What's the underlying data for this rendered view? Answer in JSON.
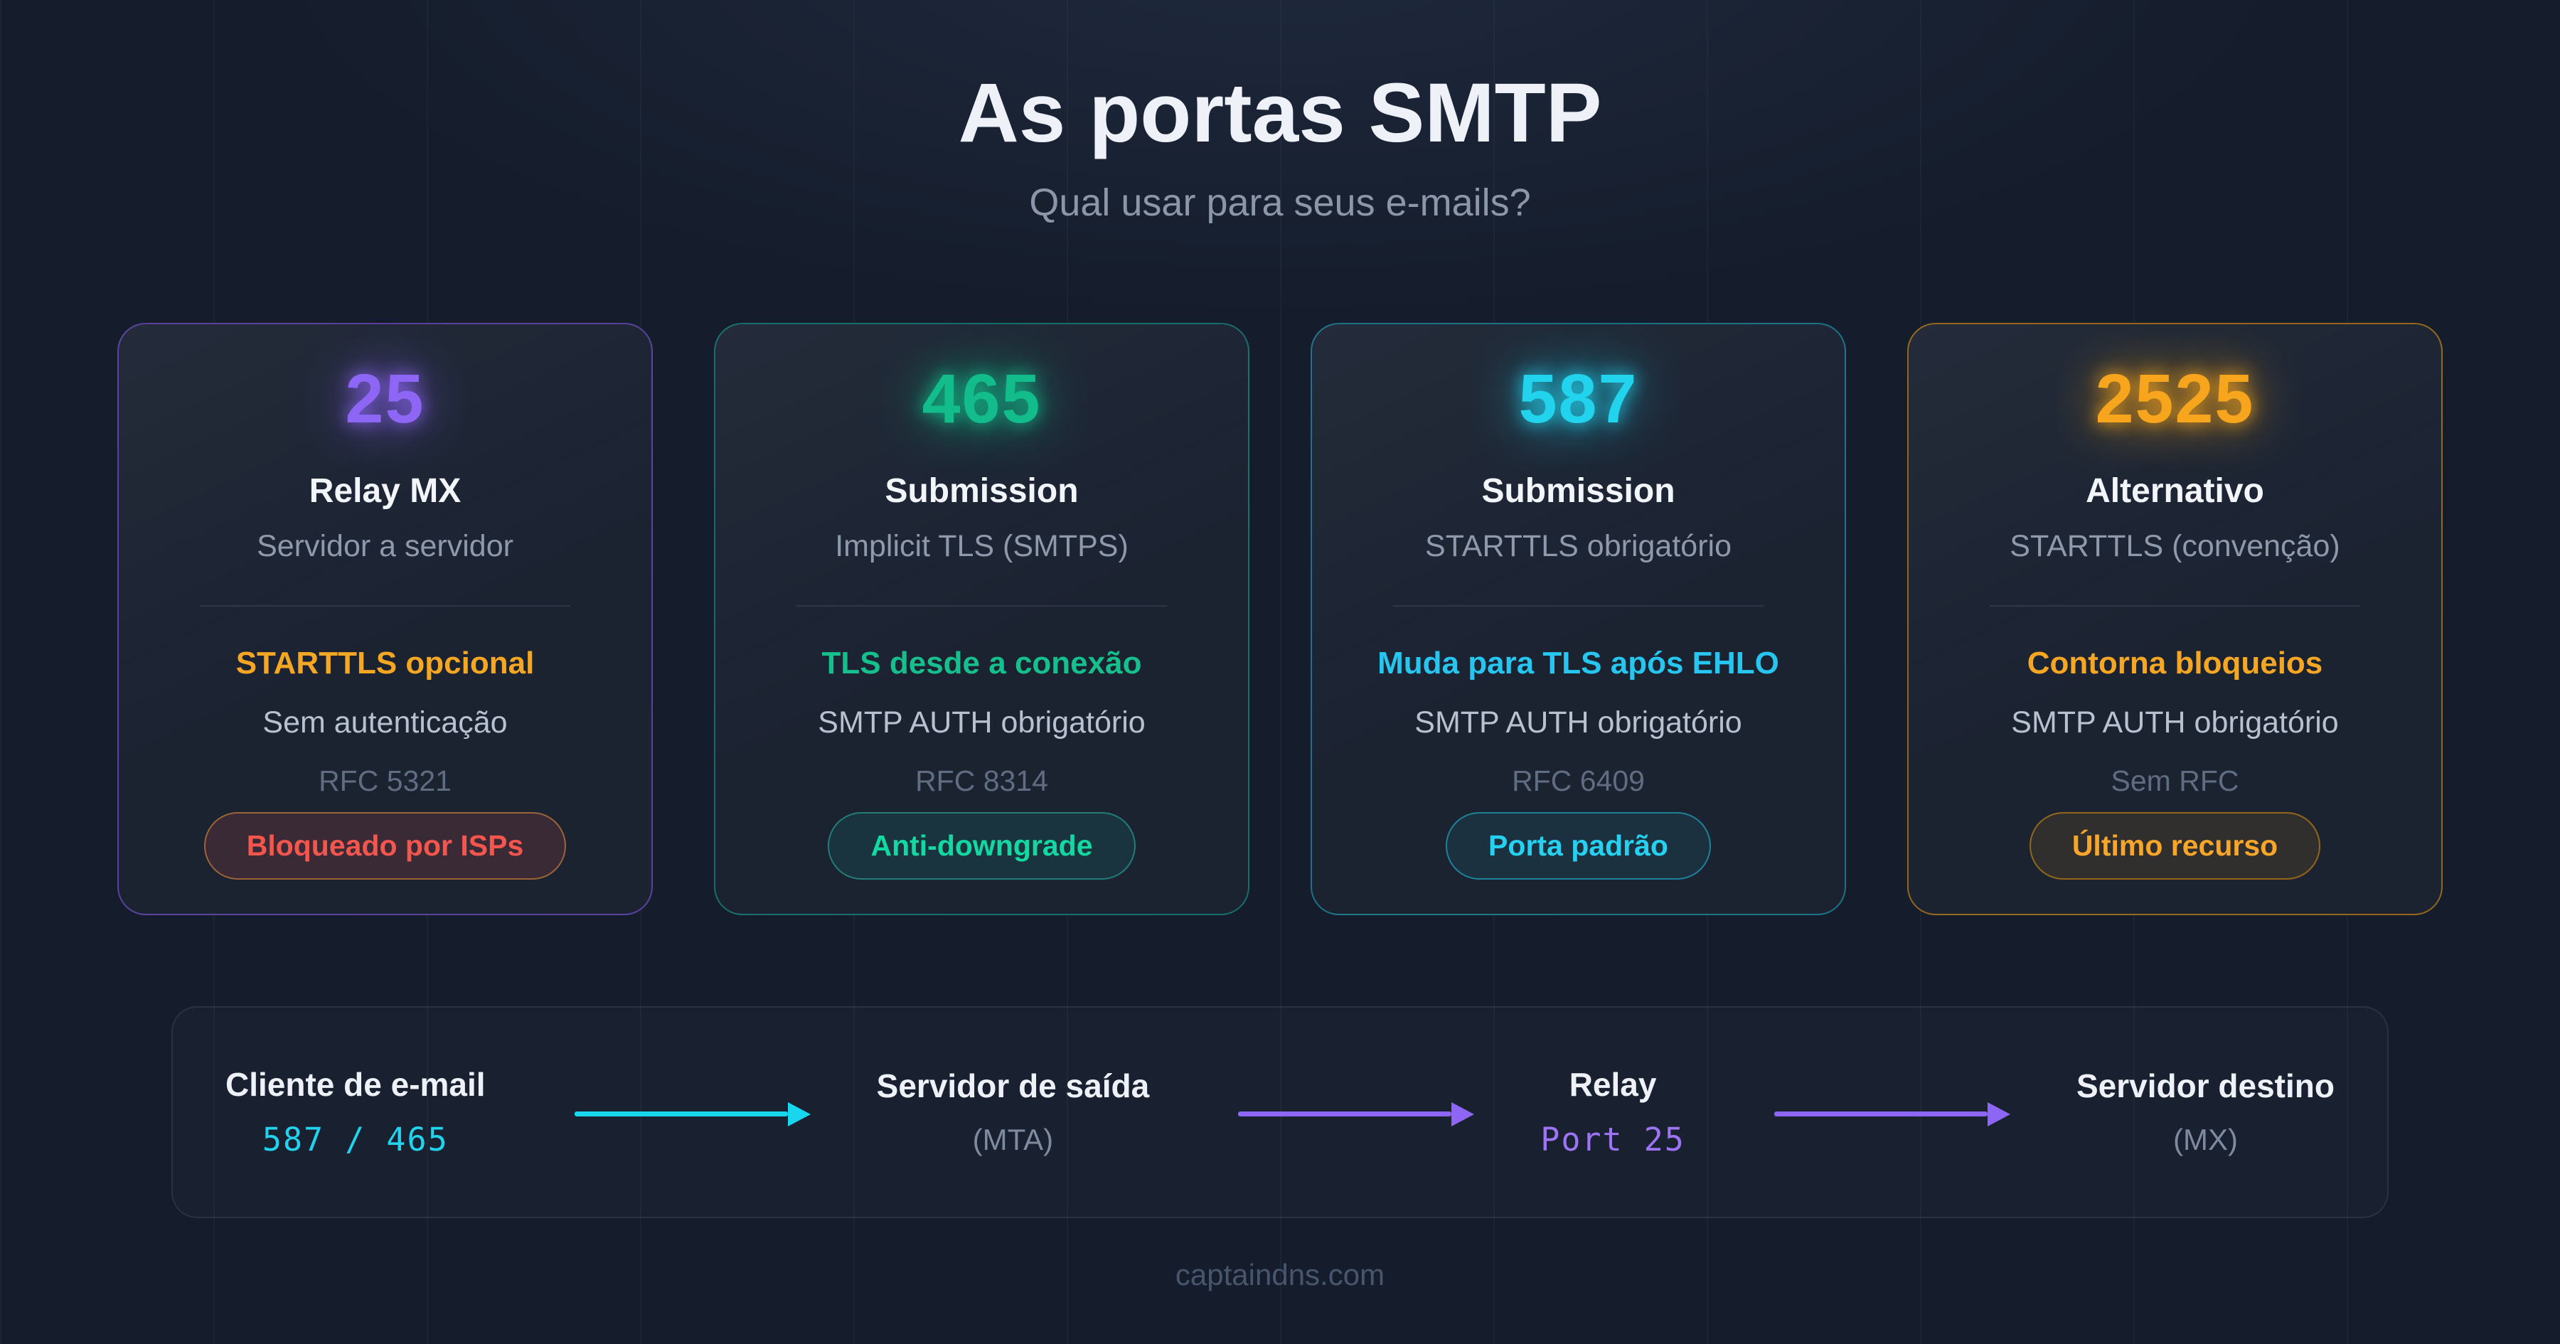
{
  "header": {
    "title": "As portas SMTP",
    "subtitle": "Qual usar para seus e-mails?"
  },
  "theme": {
    "background": "#151d2c",
    "purple": "#8d66f5",
    "green": "#12bd8b",
    "cyan": "#22d3ee",
    "orange": "#f6a51c",
    "red": "#f4564d"
  },
  "cards": [
    {
      "port": "25",
      "accent": "#8d66f5",
      "border_color": "rgba(139,92,246,0.55)",
      "title": "Relay MX",
      "subtitle": "Servidor a servidor",
      "highlight": "STARTTLS opcional",
      "highlight_color": "#f5a623",
      "auth": "Sem autenticação",
      "rfc": "RFC 5321",
      "badge": {
        "label": "Bloqueado por ISPs",
        "color": "#f4564d",
        "border_color": "rgba(235,150,60,0.55)",
        "background": "rgba(239,83,80,0.14)"
      }
    },
    {
      "port": "465",
      "accent": "#12bd8b",
      "border_color": "rgba(20,184,166,0.5)",
      "title": "Submission",
      "subtitle": "Implicit TLS (SMTPS)",
      "highlight": "TLS desde a conexão",
      "highlight_color": "#15c08d",
      "auth": "SMTP AUTH obrigatório",
      "rfc": "RFC 8314",
      "badge": {
        "label": "Anti-downgrade",
        "color": "#14d8a2",
        "border_color": "rgba(45,212,191,0.45)",
        "background": "rgba(20,184,166,0.12)"
      }
    },
    {
      "port": "587",
      "accent": "#22d3ee",
      "border_color": "rgba(34,211,238,0.45)",
      "title": "Submission",
      "subtitle": "STARTTLS obrigatório",
      "highlight": "Muda para TLS após EHLO",
      "highlight_color": "#26c6f0",
      "auth": "SMTP AUTH obrigatório",
      "rfc": "RFC 6409",
      "badge": {
        "label": "Porta padrão",
        "color": "#26d0f0",
        "border_color": "rgba(34,211,238,0.5)",
        "background": "rgba(34,211,238,0.08)"
      }
    },
    {
      "port": "2525",
      "accent": "#f6a51c",
      "border_color": "rgba(245,158,11,0.55)",
      "title": "Alternativo",
      "subtitle": "STARTTLS (convenção)",
      "highlight": "Contorna bloqueios",
      "highlight_color": "#f5a623",
      "auth": "SMTP AUTH obrigatório",
      "rfc": "Sem RFC",
      "badge": {
        "label": "Último recurso",
        "color": "#f7a62a",
        "border_color": "rgba(245,158,11,0.5)",
        "background": "rgba(245,158,11,0.10)"
      }
    }
  ],
  "flow": {
    "nodes": [
      {
        "label": "Cliente de e-mail",
        "sub": "587 / 465",
        "sub_color": "#22d3ee"
      },
      {
        "label": "Servidor de saída",
        "sub": "(MTA)",
        "sub_color": "#7d8aa0"
      },
      {
        "label": "Relay",
        "sub": "Port 25",
        "sub_color": "#9d74f5"
      },
      {
        "label": "Servidor destino",
        "sub": "(MX)",
        "sub_color": "#7d8aa0"
      }
    ],
    "arrows": [
      {
        "color": "#17d6ee"
      },
      {
        "color": "#8d66f5"
      },
      {
        "color": "#8d66f5"
      }
    ]
  },
  "footer": {
    "text": "captaindns.com"
  }
}
